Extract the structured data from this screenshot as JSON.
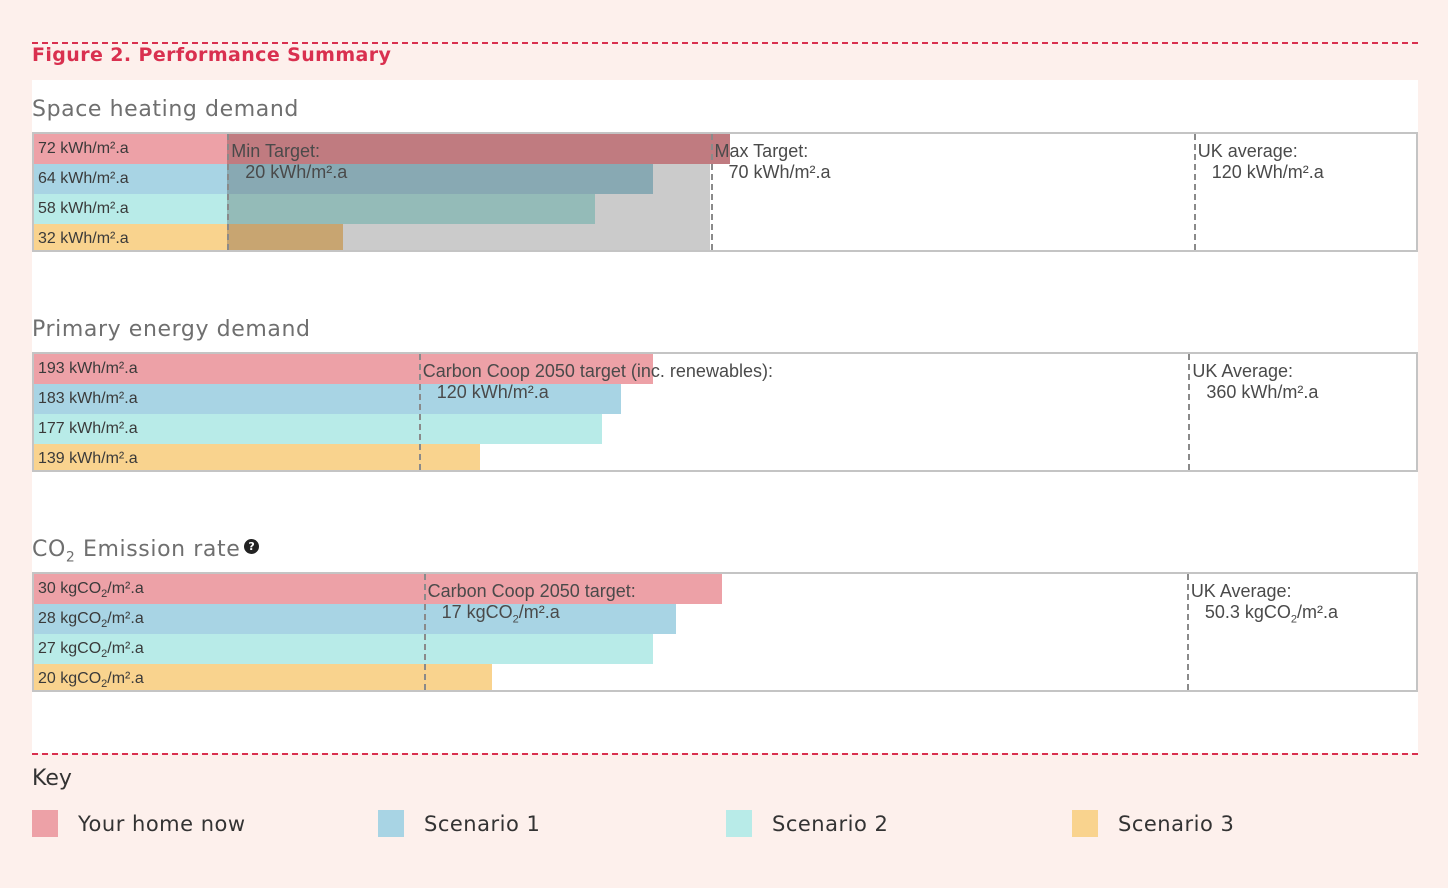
{
  "figure_title": "Figure 2. Performance Summary",
  "colors": {
    "your_home_now": "#eda1a7",
    "scenario_1": "#a8d4e4",
    "scenario_2": "#b8ebe8",
    "scenario_3": "#f9d38e",
    "accent": "#d9304f"
  },
  "chart_data": [
    {
      "type": "bar",
      "title": "Space heating demand",
      "series": [
        {
          "name": "Your home now",
          "value": 72,
          "label": "72 kWh/m².a"
        },
        {
          "name": "Scenario 1",
          "value": 64,
          "label": "64 kWh/m².a"
        },
        {
          "name": "Scenario 2",
          "value": 58,
          "label": "58 kWh/m².a"
        },
        {
          "name": "Scenario 3",
          "value": 32,
          "label": "32 kWh/m².a"
        }
      ],
      "xlim": [
        0,
        143
      ],
      "markers": [
        {
          "value": 20,
          "title": "Min Target:",
          "value_label": "20 kWh/m².a"
        },
        {
          "value": 70,
          "title": "Max Target:",
          "value_label": "70 kWh/m².a"
        },
        {
          "value": 120,
          "title": "UK average:",
          "value_label": "120 kWh/m².a"
        }
      ],
      "target_band": [
        20,
        70
      ]
    },
    {
      "type": "bar",
      "title": "Primary energy demand",
      "series": [
        {
          "name": "Your home now",
          "value": 193,
          "label": "193 kWh/m².a"
        },
        {
          "name": "Scenario 1",
          "value": 183,
          "label": "183 kWh/m².a"
        },
        {
          "name": "Scenario 2",
          "value": 177,
          "label": "177 kWh/m².a"
        },
        {
          "name": "Scenario 3",
          "value": 139,
          "label": "139 kWh/m².a"
        }
      ],
      "xlim": [
        0,
        431
      ],
      "markers": [
        {
          "value": 120,
          "title": "Carbon Coop 2050 target (inc. renewables):",
          "value_label": "120 kWh/m².a"
        },
        {
          "value": 360,
          "title": "UK Average:",
          "value_label": "360 kWh/m².a"
        }
      ]
    },
    {
      "type": "bar",
      "title_parts": [
        "CO",
        "2",
        " Emission rate"
      ],
      "series": [
        {
          "name": "Your home now",
          "value": 30,
          "label_parts": [
            "30 kgCO",
            "2",
            "/m².a"
          ]
        },
        {
          "name": "Scenario 1",
          "value": 28,
          "label_parts": [
            "28 kgCO",
            "2",
            "/m².a"
          ]
        },
        {
          "name": "Scenario 2",
          "value": 27,
          "label_parts": [
            "27 kgCO",
            "2",
            "/m².a"
          ]
        },
        {
          "name": "Scenario 3",
          "value": 20,
          "label_parts": [
            "20 kgCO",
            "2",
            "/m².a"
          ]
        }
      ],
      "xlim": [
        0,
        60.3
      ],
      "markers": [
        {
          "value": 17,
          "title": "Carbon Coop 2050 target:",
          "value_parts": [
            "17 kgCO",
            "2",
            "/m².a"
          ]
        },
        {
          "value": 50.3,
          "title": "UK Average:",
          "value_parts": [
            "50.3 kgCO",
            "2",
            "/m².a"
          ]
        }
      ]
    }
  ],
  "key": {
    "title": "Key",
    "items": [
      "Your home now",
      "Scenario 1",
      "Scenario 2",
      "Scenario 3"
    ]
  }
}
